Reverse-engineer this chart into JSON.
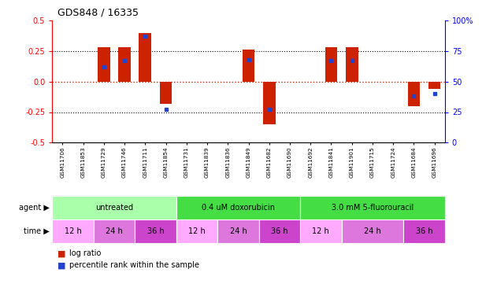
{
  "title": "GDS848 / 16335",
  "samples": [
    "GSM11706",
    "GSM11853",
    "GSM11729",
    "GSM11746",
    "GSM11711",
    "GSM11854",
    "GSM11731",
    "GSM11839",
    "GSM11836",
    "GSM11849",
    "GSM11682",
    "GSM11690",
    "GSM11692",
    "GSM11841",
    "GSM11901",
    "GSM11715",
    "GSM11724",
    "GSM11684",
    "GSM11696"
  ],
  "log_ratio": [
    0.0,
    0.0,
    0.28,
    0.28,
    0.4,
    -0.18,
    0.0,
    0.0,
    0.0,
    0.26,
    -0.35,
    0.0,
    0.0,
    0.28,
    0.28,
    0.0,
    0.0,
    -0.2,
    -0.06
  ],
  "percentile_rank_pct": [
    null,
    null,
    62,
    67,
    87,
    27,
    null,
    null,
    null,
    68,
    27,
    null,
    null,
    67,
    67,
    null,
    null,
    38,
    40
  ],
  "agent_groups": [
    {
      "label": "untreated",
      "start": 0,
      "end": 6,
      "color": "#aaffaa"
    },
    {
      "label": "0.4 uM doxorubicin",
      "start": 6,
      "end": 12,
      "color": "#44dd44"
    },
    {
      "label": "3.0 mM 5-fluorouracil",
      "start": 12,
      "end": 19,
      "color": "#44dd44"
    }
  ],
  "time_groups": [
    {
      "label": "12 h",
      "start": 0,
      "end": 2,
      "color": "#ffaaff"
    },
    {
      "label": "24 h",
      "start": 2,
      "end": 4,
      "color": "#dd77dd"
    },
    {
      "label": "36 h",
      "start": 4,
      "end": 6,
      "color": "#cc44cc"
    },
    {
      "label": "12 h",
      "start": 6,
      "end": 8,
      "color": "#ffaaff"
    },
    {
      "label": "24 h",
      "start": 8,
      "end": 10,
      "color": "#dd77dd"
    },
    {
      "label": "36 h",
      "start": 10,
      "end": 12,
      "color": "#cc44cc"
    },
    {
      "label": "12 h",
      "start": 12,
      "end": 14,
      "color": "#ffaaff"
    },
    {
      "label": "24 h",
      "start": 14,
      "end": 17,
      "color": "#dd77dd"
    },
    {
      "label": "36 h",
      "start": 17,
      "end": 19,
      "color": "#cc44cc"
    }
  ],
  "ylim": [
    -0.5,
    0.5
  ],
  "yticks_left": [
    -0.5,
    -0.25,
    0.0,
    0.25,
    0.5
  ],
  "yticks_right_pct": [
    0,
    25,
    50,
    75,
    100
  ],
  "bar_color": "#cc2200",
  "pct_color": "#2244cc",
  "zero_line_color": "#cc2200",
  "label_bg_color": "#cccccc",
  "bg_color": "#ffffff"
}
